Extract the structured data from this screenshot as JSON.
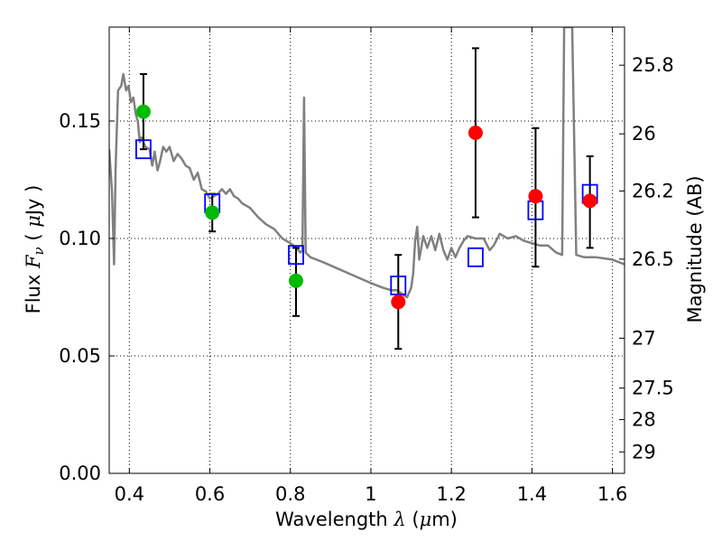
{
  "chart_data": {
    "type": "scatter",
    "xlabel": {
      "pre": "Wavelength  ",
      "sym": "λ",
      "mid": " (",
      "mu": "μ",
      "post": "m)"
    },
    "ylabel": {
      "pre": "Flux  ",
      "sym": "F",
      "sub": "ν",
      "mid": "  ( ",
      "mu": "μ",
      "post": "Jy )"
    },
    "ylabel_right": "Magnitude (AB)",
    "xlim": [
      0.35,
      1.63
    ],
    "ylim": [
      0.0,
      0.19
    ],
    "grid": true,
    "x_ticks": [
      {
        "v": 0.4,
        "label": "0.4"
      },
      {
        "v": 0.6,
        "label": "0.6"
      },
      {
        "v": 0.8,
        "label": "0.8"
      },
      {
        "v": 1.0,
        "label": "1"
      },
      {
        "v": 1.2,
        "label": "1.2"
      },
      {
        "v": 1.4,
        "label": "1.4"
      },
      {
        "v": 1.6,
        "label": "1.6"
      }
    ],
    "y_ticks": [
      {
        "v": 0.0,
        "label": "0.00"
      },
      {
        "v": 0.05,
        "label": "0.05"
      },
      {
        "v": 0.1,
        "label": "0.10"
      },
      {
        "v": 0.15,
        "label": "0.15"
      }
    ],
    "mag_ticks": [
      {
        "v": 25.8,
        "label": "25.8"
      },
      {
        "v": 26.0,
        "label": "26"
      },
      {
        "v": 26.2,
        "label": "26.2"
      },
      {
        "v": 26.5,
        "label": "26.5"
      },
      {
        "v": 27.0,
        "label": "27"
      },
      {
        "v": 27.5,
        "label": "27.5"
      },
      {
        "v": 28.0,
        "label": "28"
      },
      {
        "v": 29.0,
        "label": "29"
      }
    ],
    "colors": {
      "model": "#808080",
      "green_points": "#00bb00",
      "red_points": "#ff0000",
      "model_squares": "#0000ff",
      "errorbars": "#000000",
      "grid": "#000000"
    },
    "series": [
      {
        "marker": "circle",
        "color": "green",
        "points": [
          {
            "x": 0.435,
            "y": 0.154,
            "err": [
              0.138,
              0.17
            ]
          },
          {
            "x": 0.606,
            "y": 0.111,
            "err": [
              0.103,
              0.119
            ]
          },
          {
            "x": 0.814,
            "y": 0.082,
            "err": [
              0.067,
              0.096
            ]
          }
        ]
      },
      {
        "marker": "circle",
        "color": "red",
        "points": [
          {
            "x": 1.068,
            "y": 0.073,
            "err": [
              0.053,
              0.093
            ]
          },
          {
            "x": 1.26,
            "y": 0.145,
            "err": [
              0.109,
              0.181
            ]
          },
          {
            "x": 1.409,
            "y": 0.118,
            "err": [
              0.088,
              0.147
            ]
          },
          {
            "x": 1.544,
            "y": 0.116,
            "err": [
              0.096,
              0.135
            ]
          }
        ]
      },
      {
        "marker": "open-square",
        "color": "blue",
        "points": [
          {
            "x": 0.435,
            "y": 0.138
          },
          {
            "x": 0.606,
            "y": 0.115
          },
          {
            "x": 0.814,
            "y": 0.093
          },
          {
            "x": 1.068,
            "y": 0.08
          },
          {
            "x": 1.26,
            "y": 0.092
          },
          {
            "x": 1.409,
            "y": 0.112
          },
          {
            "x": 1.544,
            "y": 0.119
          }
        ]
      },
      {
        "marker": "line",
        "color": "model",
        "points": [
          [
            0.35,
            0.138
          ],
          [
            0.357,
            0.12
          ],
          [
            0.362,
            0.089
          ],
          [
            0.366,
            0.13
          ],
          [
            0.372,
            0.163
          ],
          [
            0.38,
            0.165
          ],
          [
            0.385,
            0.17
          ],
          [
            0.392,
            0.163
          ],
          [
            0.398,
            0.165
          ],
          [
            0.404,
            0.158
          ],
          [
            0.41,
            0.16
          ],
          [
            0.416,
            0.153
          ],
          [
            0.421,
            0.15
          ],
          [
            0.426,
            0.141
          ],
          [
            0.43,
            0.143
          ],
          [
            0.44,
            0.139
          ],
          [
            0.45,
            0.138
          ],
          [
            0.457,
            0.131
          ],
          [
            0.463,
            0.137
          ],
          [
            0.47,
            0.129
          ],
          [
            0.475,
            0.132
          ],
          [
            0.484,
            0.139
          ],
          [
            0.492,
            0.137
          ],
          [
            0.5,
            0.139
          ],
          [
            0.51,
            0.133
          ],
          [
            0.52,
            0.136
          ],
          [
            0.53,
            0.134
          ],
          [
            0.54,
            0.131
          ],
          [
            0.55,
            0.13
          ],
          [
            0.56,
            0.125
          ],
          [
            0.57,
            0.128
          ],
          [
            0.58,
            0.121
          ],
          [
            0.59,
            0.12
          ],
          [
            0.6,
            0.117
          ],
          [
            0.61,
            0.118
          ],
          [
            0.62,
            0.119
          ],
          [
            0.63,
            0.121
          ],
          [
            0.64,
            0.119
          ],
          [
            0.65,
            0.121
          ],
          [
            0.66,
            0.118
          ],
          [
            0.67,
            0.117
          ],
          [
            0.68,
            0.115
          ],
          [
            0.7,
            0.113
          ],
          [
            0.72,
            0.109
          ],
          [
            0.74,
            0.106
          ],
          [
            0.76,
            0.104
          ],
          [
            0.78,
            0.1
          ],
          [
            0.8,
            0.098
          ],
          [
            0.815,
            0.096
          ],
          [
            0.825,
            0.094
          ],
          [
            0.83,
            0.095
          ],
          [
            0.834,
            0.16
          ],
          [
            0.838,
            0.094
          ],
          [
            0.85,
            0.092
          ],
          [
            0.88,
            0.09
          ],
          [
            0.92,
            0.087
          ],
          [
            0.96,
            0.084
          ],
          [
            1.0,
            0.081
          ],
          [
            1.03,
            0.079
          ],
          [
            1.05,
            0.078
          ],
          [
            1.065,
            0.078
          ],
          [
            1.08,
            0.076
          ],
          [
            1.09,
            0.075
          ],
          [
            1.1,
            0.079
          ],
          [
            1.105,
            0.085
          ],
          [
            1.11,
            0.099
          ],
          [
            1.115,
            0.105
          ],
          [
            1.12,
            0.091
          ],
          [
            1.13,
            0.101
          ],
          [
            1.14,
            0.096
          ],
          [
            1.15,
            0.101
          ],
          [
            1.16,
            0.095
          ],
          [
            1.17,
            0.102
          ],
          [
            1.18,
            0.095
          ],
          [
            1.19,
            0.091
          ],
          [
            1.2,
            0.096
          ],
          [
            1.21,
            0.092
          ],
          [
            1.22,
            0.096
          ],
          [
            1.23,
            0.099
          ],
          [
            1.24,
            0.101
          ],
          [
            1.26,
            0.1
          ],
          [
            1.28,
            0.1
          ],
          [
            1.295,
            0.095
          ],
          [
            1.305,
            0.097
          ],
          [
            1.32,
            0.102
          ],
          [
            1.34,
            0.1
          ],
          [
            1.36,
            0.101
          ],
          [
            1.38,
            0.099
          ],
          [
            1.4,
            0.098
          ],
          [
            1.42,
            0.097
          ],
          [
            1.44,
            0.097
          ],
          [
            1.46,
            0.094
          ],
          [
            1.475,
            0.093
          ],
          [
            1.48,
            0.19
          ],
          [
            1.5,
            0.19
          ],
          [
            1.51,
            0.093
          ],
          [
            1.53,
            0.092
          ],
          [
            1.56,
            0.092
          ],
          [
            1.6,
            0.091
          ],
          [
            1.63,
            0.089
          ]
        ]
      }
    ]
  }
}
